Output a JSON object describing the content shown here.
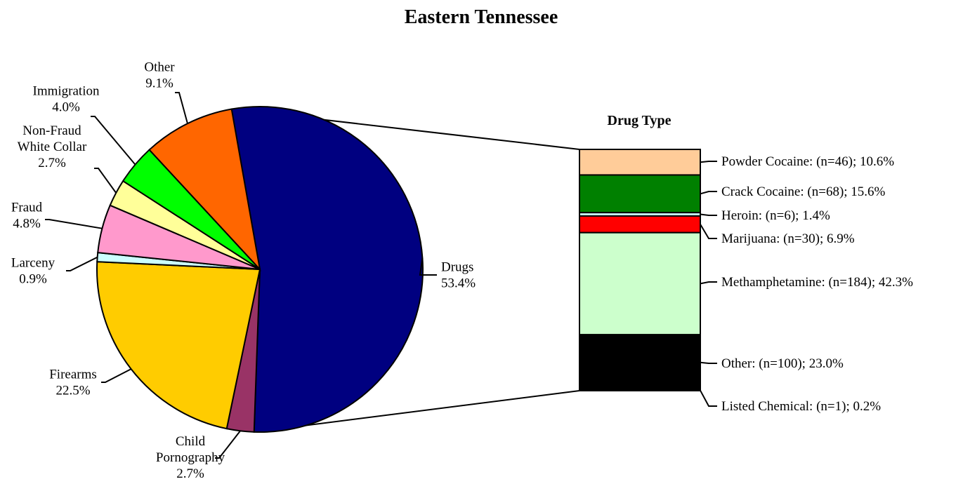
{
  "chart_data": [
    {
      "type": "pie",
      "title": "Eastern Tennessee",
      "series": [
        {
          "name": "Drugs",
          "value": 53.4,
          "label": "Drugs",
          "pct": "53.4%",
          "color": "#000080"
        },
        {
          "name": "Child Pornography",
          "value": 2.7,
          "label": "Child Pornography",
          "pct": "2.7%",
          "color": "#993366"
        },
        {
          "name": "Firearms",
          "value": 22.5,
          "label": "Firearms",
          "pct": "22.5%",
          "color": "#FFCC00"
        },
        {
          "name": "Larceny",
          "value": 0.9,
          "label": "Larceny",
          "pct": "0.9%",
          "color": "#CCFFFF"
        },
        {
          "name": "Fraud",
          "value": 4.8,
          "label": "Fraud",
          "pct": "4.8%",
          "color": "#FF99CC"
        },
        {
          "name": "Non-Fraud White Collar",
          "value": 2.7,
          "label": "Non-Fraud White Collar",
          "pct": "2.7%",
          "color": "#FFFF99"
        },
        {
          "name": "Immigration",
          "value": 4.0,
          "label": "Immigration",
          "pct": "4.0%",
          "color": "#00FF00"
        },
        {
          "name": "Other",
          "value": 9.1,
          "label": "Other",
          "pct": "9.1%",
          "color": "#FF6600"
        }
      ]
    },
    {
      "type": "bar",
      "title": "Drug Type",
      "stacked": true,
      "series": [
        {
          "name": "Powder Cocaine",
          "n": 46,
          "value": 10.6,
          "label": "Powder Cocaine:  (n=46); 10.6%",
          "color": "#FFCC99"
        },
        {
          "name": "Crack Cocaine",
          "n": 68,
          "value": 15.6,
          "label": "Crack Cocaine:  (n=68); 15.6%",
          "color": "#008000"
        },
        {
          "name": "Heroin",
          "n": 6,
          "value": 1.4,
          "label": "Heroin:  (n=6); 1.4%",
          "color": "#CCFFFF"
        },
        {
          "name": "Marijuana",
          "n": 30,
          "value": 6.9,
          "label": "Marijuana:  (n=30); 6.9%",
          "color": "#FF0000"
        },
        {
          "name": "Methamphetamine",
          "n": 184,
          "value": 42.3,
          "label": "Methamphetamine:  (n=184); 42.3%",
          "color": "#CCFFCC"
        },
        {
          "name": "Other",
          "n": 100,
          "value": 23.0,
          "label": "Other:  (n=100); 23.0%",
          "color": "#000000"
        },
        {
          "name": "Listed Chemical",
          "n": 1,
          "value": 0.2,
          "label": "Listed Chemical:  (n=1); 0.2%",
          "color": "#FFFFFF"
        }
      ]
    }
  ]
}
